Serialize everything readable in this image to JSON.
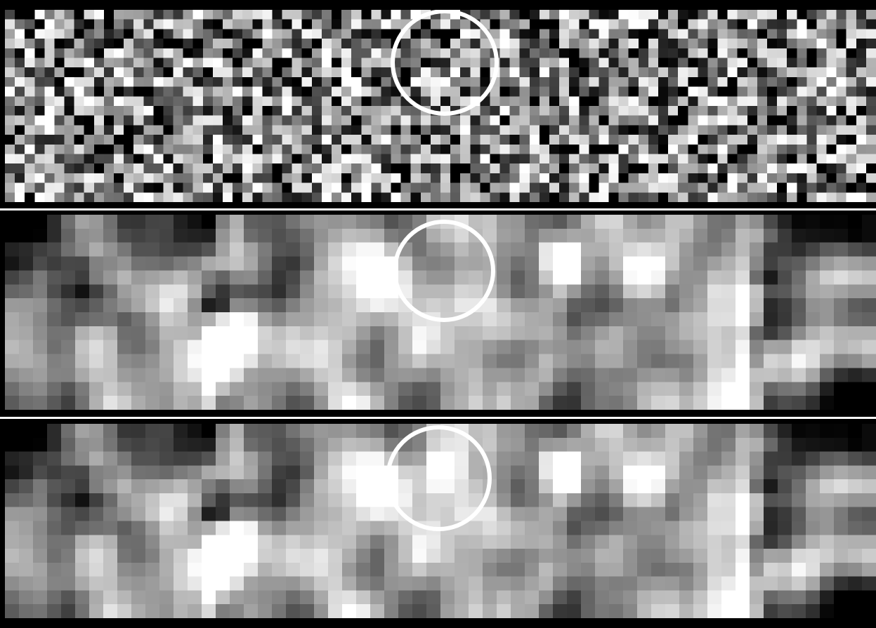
{
  "image": {
    "panels": [
      {
        "name": "raw-noisy-image",
        "smoothing": "none"
      },
      {
        "name": "smoothed-image",
        "smoothing": "blur"
      },
      {
        "name": "smoothed-image-with-detection",
        "smoothing": "blur"
      }
    ],
    "colors": {
      "background": "#000000",
      "separator": "#ffffff",
      "circle_marker": "#ffffff"
    }
  }
}
